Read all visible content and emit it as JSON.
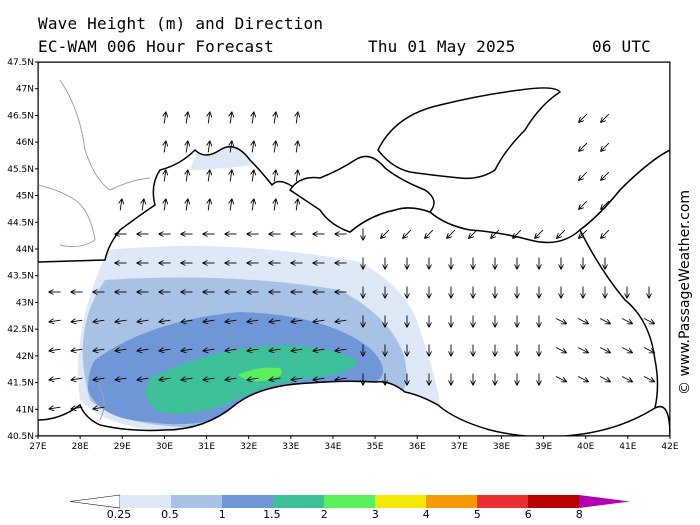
{
  "header": {
    "line1": "Wave Height (m) and Direction",
    "model": "EC-WAM 006 Hour Forecast",
    "date": "Thu 01 May 2025",
    "time": "06 UTC"
  },
  "credit": "© www.PassageWeather.com",
  "axes": {
    "lat_labels": [
      "47.5N",
      "47N",
      "46.5N",
      "46N",
      "45.5N",
      "45N",
      "44.5N",
      "44N",
      "43.5N",
      "43N",
      "42.5N",
      "42N",
      "41.5N",
      "41N",
      "40.5N"
    ],
    "lon_labels": [
      "27E",
      "28E",
      "29E",
      "30E",
      "31E",
      "32E",
      "33E",
      "34E",
      "35E",
      "36E",
      "37E",
      "38E",
      "39E",
      "40E",
      "41E",
      "42E"
    ],
    "lat_range": [
      40.5,
      47.5
    ],
    "lon_range": [
      27,
      42
    ]
  },
  "colorbar": {
    "labels": [
      "0.25",
      "0.5",
      "1",
      "1.5",
      "2",
      "3",
      "4",
      "5",
      "6",
      "8"
    ],
    "colors": [
      "#dfe8f6",
      "#a8c2e6",
      "#6f96d6",
      "#3dbf9a",
      "#5cef5c",
      "#f5e800",
      "#f59a00",
      "#e83030",
      "#b80000",
      "#b000b0"
    ]
  },
  "colors": {
    "land": "#ffffff",
    "coast": "#000000",
    "border": "#a0a0a0"
  }
}
